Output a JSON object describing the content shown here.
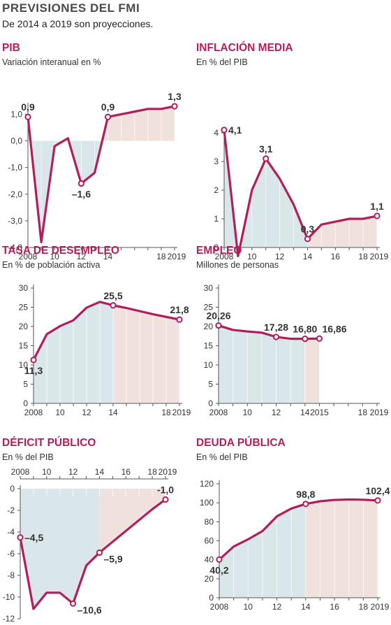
{
  "header": {
    "title": "PREVISIONES DEL FMI",
    "subtitle": "De 2014 a 2019 son proyecciones."
  },
  "colors": {
    "line": "#b01f5c",
    "historic_fill": "#d9e6ea",
    "projection_fill": "#f1e1dd",
    "grid": "#cfcfcf",
    "text": "#333333"
  },
  "chart_data": [
    {
      "id": "pib",
      "type": "line",
      "title": "PIB",
      "subtitle": "Variación interanual en %",
      "x": [
        2008,
        2009,
        2010,
        2011,
        2012,
        2013,
        2014,
        2015,
        2016,
        2017,
        2018,
        2019
      ],
      "values": [
        0.9,
        -3.8,
        -0.2,
        0.1,
        -1.6,
        -1.2,
        0.9,
        1.0,
        1.1,
        1.2,
        1.2,
        1.3
      ],
      "ylim": [
        -4,
        1.3
      ],
      "yticks": [
        1.0,
        0.0,
        -1.0,
        -2.0,
        -3.0,
        -4.0
      ],
      "ytick_labels": [
        "1,0",
        "0,0",
        "-1,0",
        "-2,0",
        "-3,0",
        "-4,0"
      ],
      "xticks": [
        2008,
        2010,
        2012,
        2014,
        2018,
        2019
      ],
      "xtick_labels": [
        "2008",
        "10",
        "12",
        "14",
        "18",
        "2019"
      ],
      "projection_start": 2014,
      "labels": [
        {
          "x": 2008,
          "text": "0,9",
          "pos": "above"
        },
        {
          "x": 2012,
          "text": "–1,6",
          "pos": "below"
        },
        {
          "x": 2014,
          "text": "0,9",
          "pos": "above"
        },
        {
          "x": 2019,
          "text": "1,3",
          "pos": "above"
        }
      ],
      "markers": [
        2008,
        2012,
        2014,
        2019
      ]
    },
    {
      "id": "inflacion",
      "type": "line",
      "title": "INFLACIÓN MEDIA",
      "subtitle": "En % del PIB",
      "x": [
        2008,
        2009,
        2010,
        2011,
        2012,
        2013,
        2014,
        2015,
        2016,
        2017,
        2018,
        2019
      ],
      "values": [
        4.1,
        -0.3,
        2.0,
        3.1,
        2.4,
        1.5,
        0.3,
        0.8,
        0.9,
        1.0,
        1.0,
        1.1
      ],
      "ylim": [
        0,
        4
      ],
      "yticks": [
        4,
        3,
        2,
        1,
        0
      ],
      "ytick_labels": [
        "4",
        "3",
        "2",
        "1",
        "0"
      ],
      "xticks": [
        2008,
        2010,
        2012,
        2014,
        2016,
        2018,
        2019
      ],
      "xtick_labels": [
        "2008",
        "10",
        "12",
        "14",
        "16",
        "18",
        "2019"
      ],
      "projection_start": 2014,
      "labels": [
        {
          "x": 2008,
          "text": "4,1",
          "pos": "right"
        },
        {
          "x": 2011,
          "text": "3,1",
          "pos": "above"
        },
        {
          "x": 2014,
          "text": "0,3",
          "pos": "above"
        },
        {
          "x": 2019,
          "text": "1,1",
          "pos": "above"
        }
      ],
      "markers": [
        2008,
        2011,
        2014,
        2019
      ]
    },
    {
      "id": "desempleo",
      "type": "line",
      "title": "TASA DE DESEMPLEO",
      "subtitle": "En % de población activa",
      "x": [
        2008,
        2009,
        2010,
        2011,
        2012,
        2013,
        2014,
        2015,
        2016,
        2017,
        2018,
        2019
      ],
      "values": [
        11.3,
        18.0,
        20.1,
        21.6,
        24.9,
        26.4,
        25.5,
        24.8,
        24.0,
        23.2,
        22.5,
        21.8
      ],
      "ylim": [
        0,
        30
      ],
      "yticks": [
        30,
        25,
        20,
        15,
        10,
        5,
        0
      ],
      "ytick_labels": [
        "30",
        "25",
        "20",
        "15",
        "10",
        "5",
        "0"
      ],
      "xticks": [
        2008,
        2010,
        2012,
        2014,
        2018,
        2019
      ],
      "xtick_labels": [
        "2008",
        "10",
        "12",
        "14",
        "18",
        "2019"
      ],
      "projection_start": 2014,
      "labels": [
        {
          "x": 2008,
          "text": "11,3",
          "pos": "below"
        },
        {
          "x": 2014,
          "text": "25,5",
          "pos": "above"
        },
        {
          "x": 2019,
          "text": "21,8",
          "pos": "above"
        }
      ],
      "markers": [
        2008,
        2014,
        2019
      ]
    },
    {
      "id": "empleo",
      "type": "line",
      "title": "EMPLEO",
      "subtitle": "Millones de personas",
      "x": [
        2008,
        2009,
        2010,
        2011,
        2012,
        2013,
        2014,
        2015
      ],
      "values": [
        20.26,
        19.1,
        18.7,
        18.4,
        17.28,
        16.8,
        16.8,
        16.86
      ],
      "ylim": [
        0,
        30
      ],
      "yticks": [
        30,
        25,
        20,
        15,
        10,
        5,
        0
      ],
      "ytick_labels": [
        "30",
        "25",
        "20",
        "15",
        "10",
        "5",
        "0"
      ],
      "xticks": [
        2008,
        2010,
        2012,
        2014,
        2015,
        2018,
        2019
      ],
      "xtick_labels": [
        "2008",
        "10",
        "12",
        "14",
        "2015",
        "18",
        "2019"
      ],
      "projection_start": 2014,
      "labels": [
        {
          "x": 2008,
          "text": "20,26",
          "pos": "above"
        },
        {
          "x": 2012,
          "text": "17,28",
          "pos": "above"
        },
        {
          "x": 2014,
          "text": "16,80",
          "pos": "above"
        },
        {
          "x": 2015,
          "text": "16,86",
          "pos": "aboveright"
        }
      ],
      "markers": [
        2008,
        2012,
        2014,
        2015
      ]
    },
    {
      "id": "deficit",
      "type": "line",
      "title": "DÉFICIT PÚBLICO",
      "subtitle": "En % del PIB",
      "x": [
        2008,
        2009,
        2010,
        2011,
        2012,
        2013,
        2014,
        2015,
        2016,
        2017,
        2018,
        2019
      ],
      "values": [
        -4.5,
        -11.1,
        -9.6,
        -9.6,
        -10.6,
        -7.1,
        -5.9,
        -4.9,
        -3.9,
        -2.9,
        -1.9,
        -1.0
      ],
      "ylim": [
        -12,
        0
      ],
      "yticks": [
        0,
        -2,
        -4,
        -6,
        -8,
        -10,
        -12
      ],
      "ytick_labels": [
        "0",
        "-2",
        "-4",
        "-6",
        "-8",
        "-10",
        "-12"
      ],
      "xticks": [
        2008,
        2010,
        2012,
        2014,
        2016,
        2018,
        2019
      ],
      "xtick_labels": [
        "2008",
        "10",
        "12",
        "14",
        "16",
        "18",
        "2019"
      ],
      "xaxis_top": true,
      "projection_start": 2014,
      "labels": [
        {
          "x": 2008,
          "text": "–4,5",
          "pos": "right"
        },
        {
          "x": 2012,
          "text": "–10,6",
          "pos": "belowright"
        },
        {
          "x": 2014,
          "text": "–5,9",
          "pos": "belowright"
        },
        {
          "x": 2019,
          "text": "-1,0",
          "pos": "above"
        }
      ],
      "markers": [
        2008,
        2012,
        2014,
        2019
      ]
    },
    {
      "id": "deuda",
      "type": "line",
      "title": "DEUDA PÚBLICA",
      "subtitle": "En % del PIB",
      "x": [
        2008,
        2009,
        2010,
        2011,
        2012,
        2013,
        2014,
        2015,
        2016,
        2017,
        2018,
        2019
      ],
      "values": [
        40.2,
        53.9,
        61.5,
        70.2,
        85.7,
        93.9,
        98.8,
        101.6,
        103.0,
        103.5,
        103.2,
        102.4
      ],
      "ylim": [
        0,
        120
      ],
      "yticks": [
        120,
        100,
        80,
        60,
        40,
        20,
        0
      ],
      "ytick_labels": [
        "120",
        "100",
        "80",
        "60",
        "40",
        "20",
        "0"
      ],
      "xticks": [
        2008,
        2010,
        2012,
        2014,
        2016,
        2018,
        2019
      ],
      "xtick_labels": [
        "2008",
        "10",
        "12",
        "14",
        "16",
        "18",
        "2019"
      ],
      "projection_start": 2014,
      "labels": [
        {
          "x": 2008,
          "text": "40,2",
          "pos": "below"
        },
        {
          "x": 2014,
          "text": "98,8",
          "pos": "above"
        },
        {
          "x": 2019,
          "text": "102,4",
          "pos": "above"
        }
      ],
      "markers": [
        2008,
        2014,
        2019
      ]
    }
  ]
}
